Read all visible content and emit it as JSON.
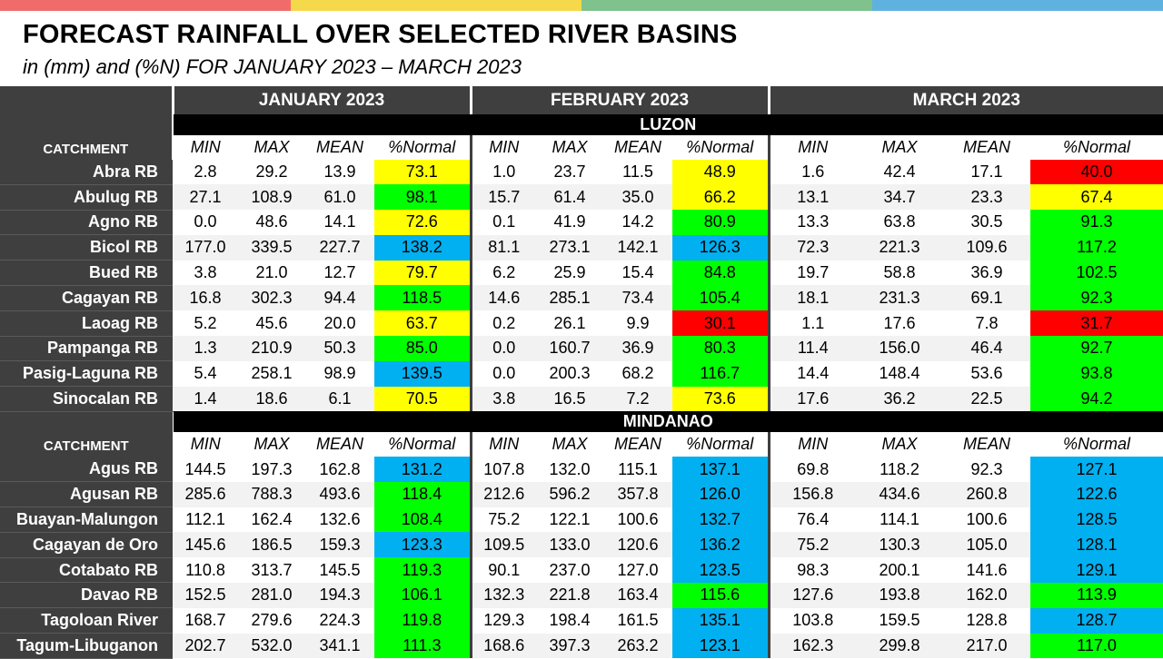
{
  "top_bar_colors": [
    "#f26b6b",
    "#f5d94a",
    "#7fc28e",
    "#5fb2e0"
  ],
  "title": "FORECAST RAINFALL OVER SELECTED RIVER BASINS",
  "subtitle": "in (mm) and (%N) FOR  JANUARY 2023 – MARCH 2023",
  "months": [
    "JANUARY 2023",
    "FEBRUARY 2023",
    "MARCH 2023"
  ],
  "catchment_label": "CATCHMENT",
  "stat_labels": [
    "MIN",
    "MAX",
    "MEAN",
    "%Normal"
  ],
  "status_colors": {
    "yellow": "#ffff00",
    "green": "#00ff00",
    "blue": "#00b0f0",
    "red": "#ff0000"
  },
  "regions": [
    {
      "name": "LUZON",
      "rows": [
        {
          "name": "Abra RB",
          "jan": [
            "2.8",
            "29.2",
            "13.9",
            "73.1"
          ],
          "jan_c": "yellow",
          "feb": [
            "1.0",
            "23.7",
            "11.5",
            "48.9"
          ],
          "feb_c": "yellow",
          "mar": [
            "1.6",
            "42.4",
            "17.1",
            "40.0"
          ],
          "mar_c": "red"
        },
        {
          "name": "Abulug RB",
          "jan": [
            "27.1",
            "108.9",
            "61.0",
            "98.1"
          ],
          "jan_c": "green",
          "feb": [
            "15.7",
            "61.4",
            "35.0",
            "66.2"
          ],
          "feb_c": "yellow",
          "mar": [
            "13.1",
            "34.7",
            "23.3",
            "67.4"
          ],
          "mar_c": "yellow"
        },
        {
          "name": "Agno RB",
          "jan": [
            "0.0",
            "48.6",
            "14.1",
            "72.6"
          ],
          "jan_c": "yellow",
          "feb": [
            "0.1",
            "41.9",
            "14.2",
            "80.9"
          ],
          "feb_c": "green",
          "mar": [
            "13.3",
            "63.8",
            "30.5",
            "91.3"
          ],
          "mar_c": "green"
        },
        {
          "name": "Bicol RB",
          "jan": [
            "177.0",
            "339.5",
            "227.7",
            "138.2"
          ],
          "jan_c": "blue",
          "feb": [
            "81.1",
            "273.1",
            "142.1",
            "126.3"
          ],
          "feb_c": "blue",
          "mar": [
            "72.3",
            "221.3",
            "109.6",
            "117.2"
          ],
          "mar_c": "green"
        },
        {
          "name": "Bued RB",
          "jan": [
            "3.8",
            "21.0",
            "12.7",
            "79.7"
          ],
          "jan_c": "yellow",
          "feb": [
            "6.2",
            "25.9",
            "15.4",
            "84.8"
          ],
          "feb_c": "green",
          "mar": [
            "19.7",
            "58.8",
            "36.9",
            "102.5"
          ],
          "mar_c": "green"
        },
        {
          "name": "Cagayan RB",
          "jan": [
            "16.8",
            "302.3",
            "94.4",
            "118.5"
          ],
          "jan_c": "green",
          "feb": [
            "14.6",
            "285.1",
            "73.4",
            "105.4"
          ],
          "feb_c": "green",
          "mar": [
            "18.1",
            "231.3",
            "69.1",
            "92.3"
          ],
          "mar_c": "green"
        },
        {
          "name": "Laoag RB",
          "jan": [
            "5.2",
            "45.6",
            "20.0",
            "63.7"
          ],
          "jan_c": "yellow",
          "feb": [
            "0.2",
            "26.1",
            "9.9",
            "30.1"
          ],
          "feb_c": "red",
          "mar": [
            "1.1",
            "17.6",
            "7.8",
            "31.7"
          ],
          "mar_c": "red"
        },
        {
          "name": "Pampanga RB",
          "jan": [
            "1.3",
            "210.9",
            "50.3",
            "85.0"
          ],
          "jan_c": "green",
          "feb": [
            "0.0",
            "160.7",
            "36.9",
            "80.3"
          ],
          "feb_c": "green",
          "mar": [
            "11.4",
            "156.0",
            "46.4",
            "92.7"
          ],
          "mar_c": "green"
        },
        {
          "name": "Pasig-Laguna RB",
          "jan": [
            "5.4",
            "258.1",
            "98.9",
            "139.5"
          ],
          "jan_c": "blue",
          "feb": [
            "0.0",
            "200.3",
            "68.2",
            "116.7"
          ],
          "feb_c": "green",
          "mar": [
            "14.4",
            "148.4",
            "53.6",
            "93.8"
          ],
          "mar_c": "green"
        },
        {
          "name": "Sinocalan RB",
          "jan": [
            "1.4",
            "18.6",
            "6.1",
            "70.5"
          ],
          "jan_c": "yellow",
          "feb": [
            "3.8",
            "16.5",
            "7.2",
            "73.6"
          ],
          "feb_c": "yellow",
          "mar": [
            "17.6",
            "36.2",
            "22.5",
            "94.2"
          ],
          "mar_c": "green"
        }
      ]
    },
    {
      "name": "MINDANAO",
      "rows": [
        {
          "name": "Agus RB",
          "jan": [
            "144.5",
            "197.3",
            "162.8",
            "131.2"
          ],
          "jan_c": "blue",
          "feb": [
            "107.8",
            "132.0",
            "115.1",
            "137.1"
          ],
          "feb_c": "blue",
          "mar": [
            "69.8",
            "118.2",
            "92.3",
            "127.1"
          ],
          "mar_c": "blue"
        },
        {
          "name": "Agusan RB",
          "jan": [
            "285.6",
            "788.3",
            "493.6",
            "118.4"
          ],
          "jan_c": "green",
          "feb": [
            "212.6",
            "596.2",
            "357.8",
            "126.0"
          ],
          "feb_c": "blue",
          "mar": [
            "156.8",
            "434.6",
            "260.8",
            "122.6"
          ],
          "mar_c": "blue"
        },
        {
          "name": "Buayan-Malungon",
          "jan": [
            "112.1",
            "162.4",
            "132.6",
            "108.4"
          ],
          "jan_c": "green",
          "feb": [
            "75.2",
            "122.1",
            "100.6",
            "132.7"
          ],
          "feb_c": "blue",
          "mar": [
            "76.4",
            "114.1",
            "100.6",
            "128.5"
          ],
          "mar_c": "blue"
        },
        {
          "name": "Cagayan de Oro",
          "jan": [
            "145.6",
            "186.5",
            "159.3",
            "123.3"
          ],
          "jan_c": "blue",
          "feb": [
            "109.5",
            "133.0",
            "120.6",
            "136.2"
          ],
          "feb_c": "blue",
          "mar": [
            "75.2",
            "130.3",
            "105.0",
            "128.1"
          ],
          "mar_c": "blue"
        },
        {
          "name": "Cotabato RB",
          "jan": [
            "110.8",
            "313.7",
            "145.5",
            "119.3"
          ],
          "jan_c": "green",
          "feb": [
            "90.1",
            "237.0",
            "127.0",
            "123.5"
          ],
          "feb_c": "blue",
          "mar": [
            "98.3",
            "200.1",
            "141.6",
            "129.1"
          ],
          "mar_c": "blue"
        },
        {
          "name": "Davao RB",
          "jan": [
            "152.5",
            "281.0",
            "194.3",
            "106.1"
          ],
          "jan_c": "green",
          "feb": [
            "132.3",
            "221.8",
            "163.4",
            "115.6"
          ],
          "feb_c": "green",
          "mar": [
            "127.6",
            "193.8",
            "162.0",
            "113.9"
          ],
          "mar_c": "green"
        },
        {
          "name": "Tagoloan River",
          "jan": [
            "168.7",
            "279.6",
            "224.3",
            "119.8"
          ],
          "jan_c": "green",
          "feb": [
            "129.3",
            "198.4",
            "161.5",
            "135.1"
          ],
          "feb_c": "blue",
          "mar": [
            "103.8",
            "159.5",
            "128.8",
            "128.7"
          ],
          "mar_c": "blue"
        },
        {
          "name": "Tagum-Libuganon",
          "jan": [
            "202.7",
            "532.0",
            "341.1",
            "111.3"
          ],
          "jan_c": "green",
          "feb": [
            "168.6",
            "397.3",
            "263.2",
            "123.1"
          ],
          "feb_c": "blue",
          "mar": [
            "162.3",
            "299.8",
            "217.0",
            "117.0"
          ],
          "mar_c": "green"
        }
      ]
    }
  ]
}
